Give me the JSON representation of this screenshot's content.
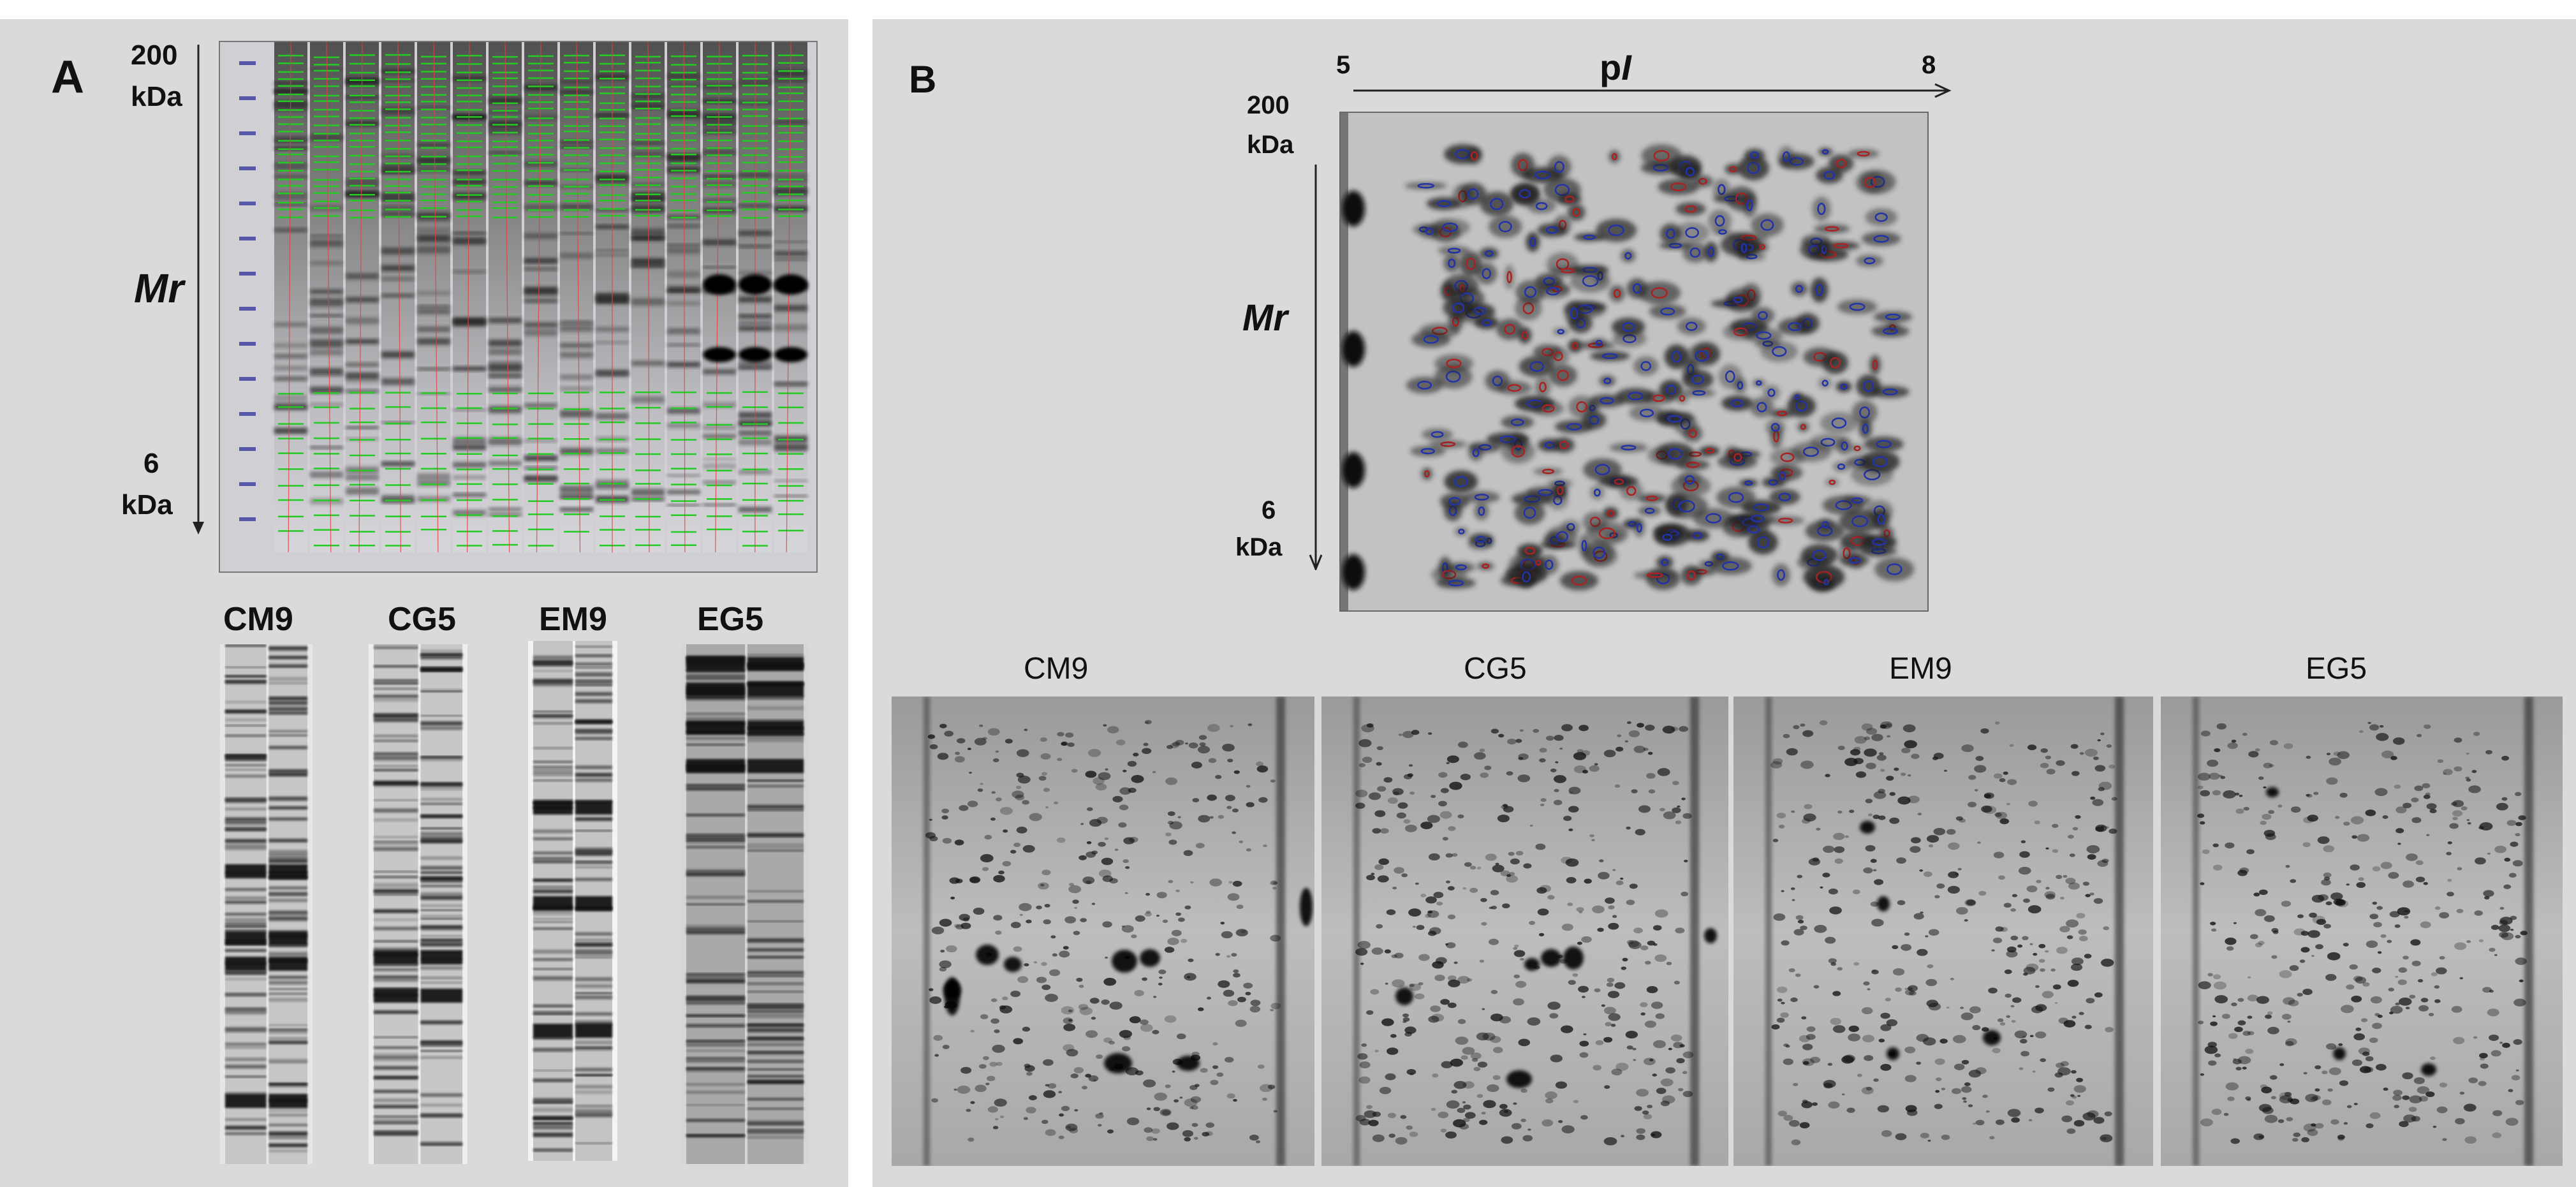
{
  "panel_a": {
    "letter": "A",
    "mw_top": "200",
    "mw_top_unit": "kDa",
    "mw_axis_label": "Mr",
    "mw_bottom": "6",
    "mw_bottom_unit": "kDa",
    "gels": [
      {
        "label": "CM9"
      },
      {
        "label": "CG5"
      },
      {
        "label": "EM9"
      },
      {
        "label": "EG5"
      }
    ]
  },
  "panel_b": {
    "letter": "B",
    "pi_start": "5",
    "pi_end": "8",
    "pi_label_main": "p",
    "pi_label_italic": "I",
    "mw_top": "200",
    "mw_top_unit": "kDa",
    "mw_axis_label": "Mr",
    "mw_bottom": "6",
    "mw_bottom_unit": "kDa",
    "gels": [
      {
        "label": "CM9"
      },
      {
        "label": "CG5"
      },
      {
        "label": "EM9"
      },
      {
        "label": "EG5"
      }
    ]
  },
  "colors": {
    "panel_background": "#dadada",
    "detected_band_marker": "#22cc22",
    "lane_marker": "#e04040",
    "spot_outline_blue": "#2233aa",
    "spot_outline_red": "#aa2222"
  }
}
